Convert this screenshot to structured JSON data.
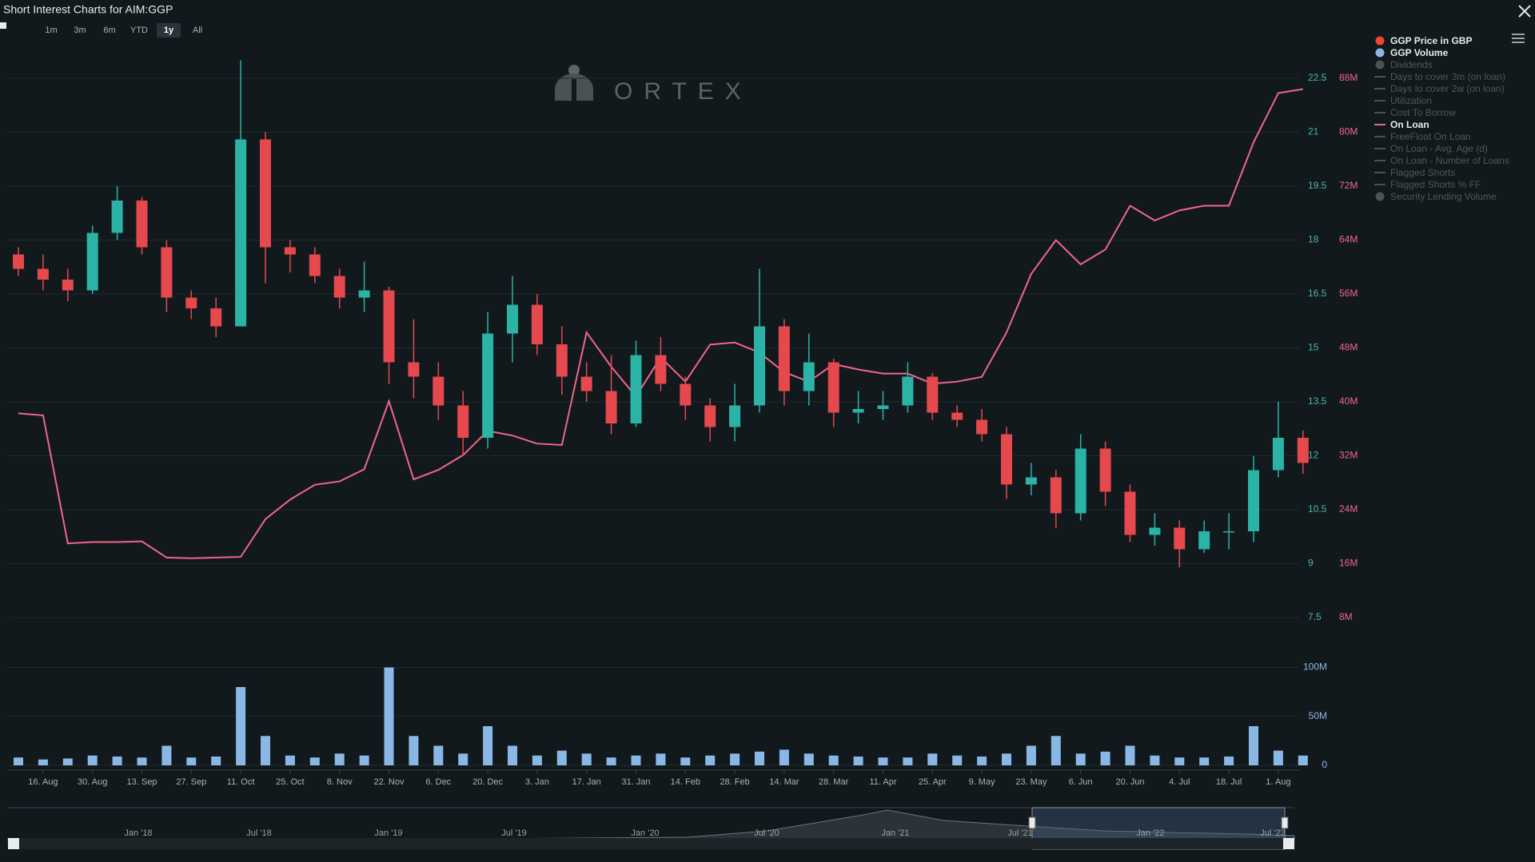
{
  "title": "Short Interest Charts for AIM:GGP",
  "range_buttons": [
    "1m",
    "3m",
    "6m",
    "YTD",
    "1y",
    "All"
  ],
  "active_range": "1y",
  "watermark": "ORTEX",
  "navigator": {
    "labels": [
      "Jan '18",
      "Jul '18",
      "Jan '19",
      "Jul '19",
      "Jan '20",
      "Jul '20",
      "Jan '21",
      "Jul '21",
      "Jan '22",
      "Jul '22"
    ]
  },
  "chart_data": {
    "type": "candlestick",
    "categories": [
      null,
      "16. Aug",
      null,
      "30. Aug",
      null,
      "13. Sep",
      null,
      "27. Sep",
      null,
      "11. Oct",
      null,
      "25. Oct",
      null,
      "8. Nov",
      null,
      "22. Nov",
      null,
      "6. Dec",
      null,
      "20. Dec",
      null,
      "3. Jan",
      null,
      "17. Jan",
      null,
      "31. Jan",
      null,
      "14. Feb",
      null,
      "28. Feb",
      null,
      "14. Mar",
      null,
      "28. Mar",
      null,
      "11. Apr",
      null,
      "25. Apr",
      null,
      "9. May",
      null,
      "23. May",
      null,
      "6. Jun",
      null,
      "20. Jun",
      null,
      "4. Jul",
      null,
      "18. Jul",
      null,
      "1. Aug",
      null
    ],
    "ylim": [
      7.5,
      24
    ],
    "yticks": [
      7.5,
      9,
      10.5,
      12,
      13.5,
      15,
      16.5,
      18,
      19.5,
      21,
      22.5
    ],
    "y2lim": [
      8000000,
      96000000
    ],
    "y2ticks": [
      {
        "value": 8000000,
        "label": "8M"
      },
      {
        "value": 16000000,
        "label": "16M"
      },
      {
        "value": 24000000,
        "label": "24M"
      },
      {
        "value": 32000000,
        "label": "32M"
      },
      {
        "value": 40000000,
        "label": "40M"
      },
      {
        "value": 48000000,
        "label": "48M"
      },
      {
        "value": 56000000,
        "label": "56M"
      },
      {
        "value": 64000000,
        "label": "64M"
      },
      {
        "value": 72000000,
        "label": "72M"
      },
      {
        "value": 80000000,
        "label": "80M"
      },
      {
        "value": 88000000,
        "label": "88M"
      }
    ],
    "volume_ylim": [
      0,
      120000000
    ],
    "volume_yticks": [
      0,
      {
        "value": 50000000,
        "label": "50M"
      },
      {
        "value": 100000000,
        "label": "100M"
      }
    ],
    "grid": true,
    "series": [
      {
        "name": "GGP Price in GBP",
        "type": "candlestick",
        "marker": "dot",
        "color": "#f44336",
        "up_color": "#2bb3a5",
        "down_color": "#e5484d",
        "visible": true,
        "open": [
          17.6,
          17.2,
          16.9,
          16.6,
          18.2,
          19.1,
          17.8,
          16.4,
          16.1,
          15.6,
          20.8,
          17.8,
          17.6,
          17.0,
          16.4,
          16.6,
          14.6,
          14.2,
          13.4,
          12.5,
          15.4,
          16.2,
          15.1,
          14.2,
          13.8,
          12.9,
          14.8,
          14.0,
          13.4,
          12.8,
          13.4,
          15.6,
          13.8,
          14.6,
          13.2,
          13.3,
          13.4,
          14.2,
          13.2,
          13.0,
          12.6,
          11.2,
          11.4,
          10.4,
          12.2,
          11.0,
          9.8,
          10.0,
          9.4,
          9.9,
          9.9,
          11.6,
          12.5
        ],
        "high": [
          17.8,
          17.6,
          17.2,
          18.4,
          19.5,
          19.2,
          18.0,
          16.6,
          16.4,
          23.0,
          21.0,
          18.0,
          17.8,
          17.2,
          17.4,
          16.7,
          15.8,
          14.6,
          13.8,
          16.0,
          17.0,
          16.5,
          15.6,
          14.6,
          14.8,
          15.2,
          15.3,
          14.2,
          13.6,
          14.0,
          17.2,
          15.8,
          15.4,
          14.7,
          13.8,
          13.8,
          14.6,
          14.3,
          13.4,
          13.3,
          12.8,
          11.8,
          11.6,
          12.6,
          12.4,
          11.2,
          10.4,
          10.2,
          10.2,
          10.4,
          12.0,
          13.5,
          12.7
        ],
        "low": [
          17.0,
          16.6,
          16.3,
          16.5,
          18.0,
          17.6,
          16.0,
          15.8,
          15.3,
          15.6,
          16.8,
          17.1,
          16.8,
          16.1,
          16.0,
          14.0,
          13.6,
          13.0,
          12.0,
          12.2,
          14.6,
          14.8,
          13.7,
          13.5,
          12.6,
          12.8,
          13.8,
          13.0,
          12.4,
          12.4,
          13.2,
          13.4,
          13.4,
          12.8,
          12.9,
          13.0,
          13.2,
          13.0,
          12.8,
          12.4,
          10.8,
          10.9,
          10.0,
          10.2,
          10.6,
          9.6,
          9.5,
          8.9,
          9.3,
          9.4,
          9.6,
          11.4,
          11.5
        ],
        "close": [
          17.2,
          16.9,
          16.6,
          18.2,
          19.1,
          17.8,
          16.4,
          16.1,
          15.6,
          20.8,
          17.8,
          17.6,
          17.0,
          16.4,
          16.6,
          14.6,
          14.2,
          13.4,
          12.5,
          15.4,
          16.2,
          15.1,
          14.2,
          13.8,
          12.9,
          14.8,
          14.0,
          13.4,
          12.8,
          13.4,
          15.6,
          13.8,
          14.6,
          13.2,
          13.3,
          13.4,
          14.2,
          13.2,
          13.0,
          12.6,
          11.2,
          11.4,
          10.4,
          12.2,
          11.0,
          9.8,
          10.0,
          9.4,
          9.9,
          9.9,
          11.6,
          12.5,
          11.8
        ]
      },
      {
        "name": "GGP Volume",
        "type": "column",
        "axis": "volume",
        "marker": "dot",
        "color": "#8ab8e6",
        "visible": true,
        "values": [
          8000000,
          6000000,
          7000000,
          10000000,
          9000000,
          8000000,
          20000000,
          8000000,
          9000000,
          80000000,
          30000000,
          10000000,
          8000000,
          12000000,
          10000000,
          100000000,
          30000000,
          20000000,
          12000000,
          40000000,
          20000000,
          10000000,
          15000000,
          12000000,
          8000000,
          10000000,
          12000000,
          8000000,
          10000000,
          12000000,
          14000000,
          16000000,
          12000000,
          10000000,
          9000000,
          8000000,
          8000000,
          12000000,
          10000000,
          9000000,
          12000000,
          20000000,
          30000000,
          12000000,
          14000000,
          20000000,
          10000000,
          8000000,
          8000000,
          9000000,
          40000000,
          15000000,
          10000000
        ]
      },
      {
        "name": "Dividends",
        "marker": "dot",
        "visible": false
      },
      {
        "name": "Days to cover 3m (on loan)",
        "marker": "line",
        "visible": false
      },
      {
        "name": "Days to cover 2w (on loan)",
        "marker": "line",
        "visible": false
      },
      {
        "name": "Utilization",
        "marker": "line",
        "visible": false
      },
      {
        "name": "Cost To Borrow",
        "marker": "line",
        "visible": false
      },
      {
        "name": "On Loan",
        "type": "line",
        "axis": "y2",
        "marker": "line",
        "color": "#f0668a",
        "visible": true,
        "values": [
          38300000,
          38000000,
          19000000,
          19200000,
          19200000,
          19300000,
          16900000,
          16800000,
          16900000,
          17000000,
          22600000,
          25500000,
          27700000,
          28200000,
          30000000,
          40100000,
          28500000,
          29900000,
          32100000,
          35700000,
          35000000,
          33800000,
          33600000,
          50300000,
          45200000,
          40800000,
          46600000,
          43000000,
          48500000,
          48800000,
          47300000,
          44400000,
          43000000,
          45600000,
          44800000,
          44200000,
          44200000,
          42700000,
          43000000,
          43700000,
          50300000,
          59000000,
          64000000,
          60400000,
          62600000,
          69100000,
          66900000,
          68400000,
          69100000,
          69100000,
          78500000,
          85800000,
          86400000
        ]
      },
      {
        "name": "FreeFloat On Loan",
        "marker": "line",
        "visible": false
      },
      {
        "name": "On Loan - Avg. Age (d)",
        "marker": "line",
        "visible": false
      },
      {
        "name": "On Loan - Number of Loans",
        "marker": "line",
        "visible": false
      },
      {
        "name": "Flagged Shorts",
        "marker": "line",
        "visible": false
      },
      {
        "name": "Flagged Shorts % FF",
        "marker": "line",
        "visible": false
      },
      {
        "name": "Security Lending Volume",
        "marker": "dot",
        "visible": false
      }
    ]
  }
}
